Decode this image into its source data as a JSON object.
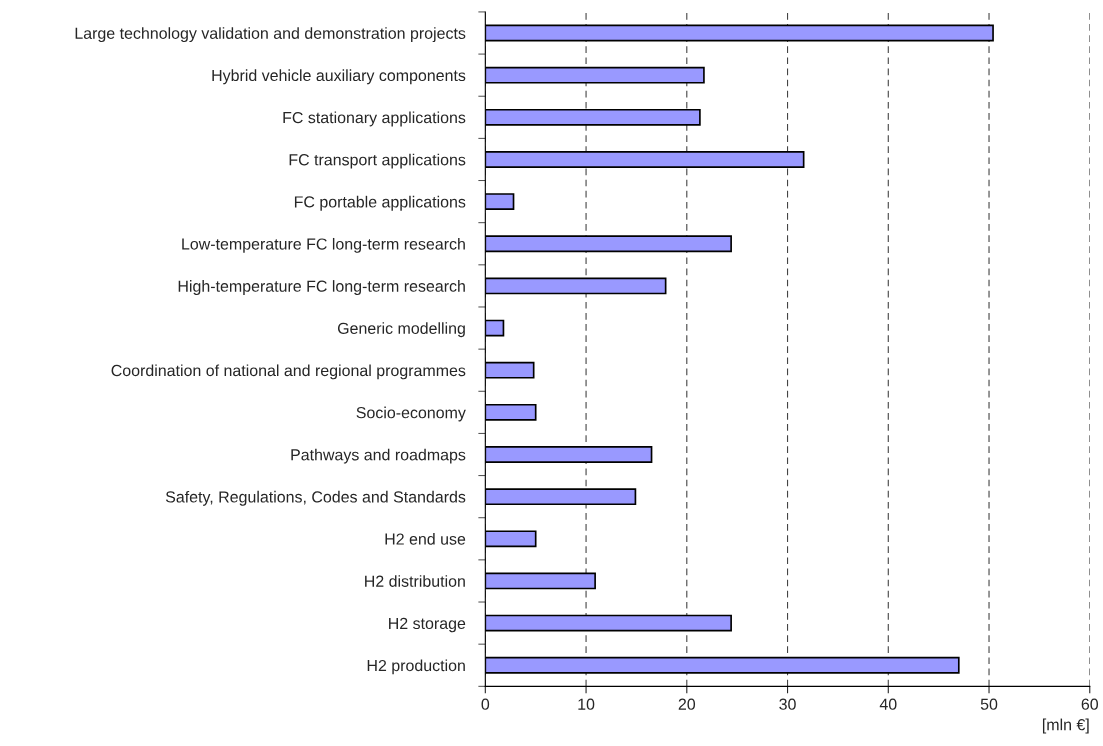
{
  "chart_data": {
    "type": "bar",
    "orientation": "horizontal",
    "xlabel": "[mln €]",
    "categories": [
      "Large technology validation and demonstration projects",
      "Hybrid vehicle auxiliary components",
      "FC stationary applications",
      "FC transport applications",
      "FC portable applications",
      "Low-temperature FC long-term research",
      "High-temperature FC long-term research",
      "Generic modelling",
      "Coordination of national and regional programmes",
      "Socio-economy",
      "Pathways and roadmaps",
      "Safety, Regulations, Codes and Standards",
      "H2 end use",
      "H2 distribution",
      "H2 storage",
      "H2 production"
    ],
    "values": [
      50.4,
      21.7,
      21.3,
      31.6,
      2.8,
      24.4,
      17.9,
      1.8,
      4.8,
      5.0,
      16.5,
      14.9,
      5.0,
      10.9,
      24.4,
      47.0
    ],
    "color": "#9999ff",
    "xlim": [
      0,
      60
    ],
    "xticks": [
      0,
      10,
      20,
      30,
      40,
      50,
      60
    ],
    "grid": "x",
    "line_style": "dashed"
  }
}
